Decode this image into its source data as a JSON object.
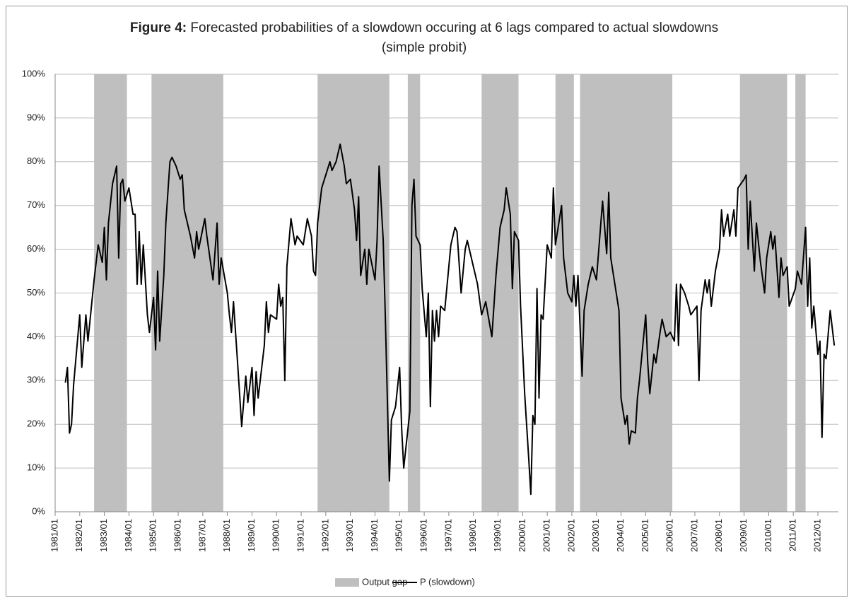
{
  "chart_data": {
    "type": "line",
    "title_label": "Figure 4:",
    "title": "Forecasted probabilities of a slowdown occuring at 6 lags compared to actual slowdowns (simple probit)",
    "xlim": [
      "1981/01",
      "2012/11"
    ],
    "xticks": [
      "1981/01",
      "1982/01",
      "1983/01",
      "1984/01",
      "1985/01",
      "1986/01",
      "1987/01",
      "1988/01",
      "1989/01",
      "1990/01",
      "1991/01",
      "1992/01",
      "1993/01",
      "1994/01",
      "1995/01",
      "1996/01",
      "1997/01",
      "1998/01",
      "1999/01",
      "2000/01",
      "2001/01",
      "2002/01",
      "2003/01",
      "2004/01",
      "2005/01",
      "2006/01",
      "2007/01",
      "2008/01",
      "2009/01",
      "2010/01",
      "2011/01",
      "2012/01"
    ],
    "ylim": [
      0,
      100
    ],
    "yticks": [
      {
        "value": 0,
        "label": "0%"
      },
      {
        "value": 10,
        "label": "10%"
      },
      {
        "value": 20,
        "label": "20%"
      },
      {
        "value": 30,
        "label": "30%"
      },
      {
        "value": 40,
        "label": "40%"
      },
      {
        "value": 50,
        "label": "50%"
      },
      {
        "value": 60,
        "label": "60%"
      },
      {
        "value": 70,
        "label": "70%"
      },
      {
        "value": 80,
        "label": "80%"
      },
      {
        "value": 90,
        "label": "90%"
      },
      {
        "value": 100,
        "label": "100%"
      }
    ],
    "grid": true,
    "legend": "bottom",
    "series": [
      {
        "name": "Output gap",
        "color": "#bfbfbf",
        "periods": [
          [
            "1982/08",
            "1983/12"
          ],
          [
            "1984/12",
            "1987/11"
          ],
          [
            "1991/09",
            "1994/08"
          ],
          [
            "1995/05",
            "1995/11"
          ],
          [
            "1998/05",
            "1999/11"
          ],
          [
            "2001/05",
            "2002/02"
          ],
          [
            "2002/05",
            "2006/02"
          ],
          [
            "2008/11",
            "2010/10"
          ],
          [
            "2011/02",
            "2011/07"
          ]
        ]
      },
      {
        "name": "P (slowdown)",
        "color": "#000000",
        "x": [
          "1981/06",
          "1981/07",
          "1981/08",
          "1981/09",
          "1981/10",
          "1982/01",
          "1982/02",
          "1982/04",
          "1982/05",
          "1982/08",
          "1982/10",
          "1982/12",
          "1983/01",
          "1983/02",
          "1983/03",
          "1983/05",
          "1983/07",
          "1983/08",
          "1983/09",
          "1983/10",
          "1983/11",
          "1984/01",
          "1984/03",
          "1984/04",
          "1984/05",
          "1984/06",
          "1984/07",
          "1984/08",
          "1984/10",
          "1984/11",
          "1985/01",
          "1985/02",
          "1985/03",
          "1985/04",
          "1985/06",
          "1985/07",
          "1985/09",
          "1985/10",
          "1985/12",
          "1986/02",
          "1986/03",
          "1986/04",
          "1986/07",
          "1986/09",
          "1986/10",
          "1986/11",
          "1987/02",
          "1987/03",
          "1987/06",
          "1987/08",
          "1987/09",
          "1987/10",
          "1988/01",
          "1988/02",
          "1988/03",
          "1988/04",
          "1988/06",
          "1988/08",
          "1988/10",
          "1988/11",
          "1989/01",
          "1989/02",
          "1989/03",
          "1989/04",
          "1989/07",
          "1989/08",
          "1989/09",
          "1989/10",
          "1990/01",
          "1990/02",
          "1990/03",
          "1990/04",
          "1990/05",
          "1990/06",
          "1990/08",
          "1990/10",
          "1990/11",
          "1991/02",
          "1991/04",
          "1991/06",
          "1991/07",
          "1991/08",
          "1991/09",
          "1991/11",
          "1992/03",
          "1992/04",
          "1992/06",
          "1992/08",
          "1992/10",
          "1992/11",
          "1993/01",
          "1993/03",
          "1993/04",
          "1993/05",
          "1993/06",
          "1993/08",
          "1993/09",
          "1993/10",
          "1994/01",
          "1994/02",
          "1994/03",
          "1994/05",
          "1994/06",
          "1994/08",
          "1994/09",
          "1994/11",
          "1995/01",
          "1995/02",
          "1995/03",
          "1995/06",
          "1995/07",
          "1995/08",
          "1995/09",
          "1995/11",
          "1995/12",
          "1996/02",
          "1996/03",
          "1996/04",
          "1996/05",
          "1996/06",
          "1996/07",
          "1996/08",
          "1996/09",
          "1996/11",
          "1997/01",
          "1997/02",
          "1997/04",
          "1997/05",
          "1997/07",
          "1997/09",
          "1997/10",
          "1998/01",
          "1998/03",
          "1998/05",
          "1998/07",
          "1998/10",
          "1998/12",
          "1999/02",
          "1999/04",
          "1999/05",
          "1999/07",
          "1999/08",
          "1999/09",
          "1999/11",
          "1999/12",
          "2000/01",
          "2000/02",
          "2000/04",
          "2000/05",
          "2000/06",
          "2000/07",
          "2000/08",
          "2000/09",
          "2000/10",
          "2000/11",
          "2001/01",
          "2001/03",
          "2001/04",
          "2001/05",
          "2001/06",
          "2001/08",
          "2001/09",
          "2001/11",
          "2002/01",
          "2002/02",
          "2002/03",
          "2002/04",
          "2002/06",
          "2002/07",
          "2002/09",
          "2002/11",
          "2003/01",
          "2003/03",
          "2003/04",
          "2003/05",
          "2003/06",
          "2003/07",
          "2003/08",
          "2003/10",
          "2003/12",
          "2004/01",
          "2004/03",
          "2004/04",
          "2004/05",
          "2004/06",
          "2004/08",
          "2004/09",
          "2004/10",
          "2005/01",
          "2005/02",
          "2005/03",
          "2005/05",
          "2005/06",
          "2005/08",
          "2005/09",
          "2005/11",
          "2006/01",
          "2006/03",
          "2006/04",
          "2006/05",
          "2006/06",
          "2006/08",
          "2006/10",
          "2006/11",
          "2007/02",
          "2007/03",
          "2007/04",
          "2007/06",
          "2007/07",
          "2007/08",
          "2007/09",
          "2007/11",
          "2008/01",
          "2008/02",
          "2008/03",
          "2008/05",
          "2008/06",
          "2008/08",
          "2008/09",
          "2008/10",
          "2009/01",
          "2009/02",
          "2009/03",
          "2009/04",
          "2009/06",
          "2009/07",
          "2009/09",
          "2009/11",
          "2009/12",
          "2010/02",
          "2010/03",
          "2010/04",
          "2010/06",
          "2010/07",
          "2010/08",
          "2010/10",
          "2010/11",
          "2011/02",
          "2011/03",
          "2011/05",
          "2011/07",
          "2011/08",
          "2011/09",
          "2011/10",
          "2011/11",
          "2012/01",
          "2012/02",
          "2012/03",
          "2012/04",
          "2012/05",
          "2012/07",
          "2012/09"
        ],
        "values": [
          29.5,
          33,
          18,
          20,
          29,
          45,
          33,
          45,
          39,
          53,
          61,
          57,
          65,
          53,
          66,
          75,
          79,
          58,
          75,
          76,
          71,
          74,
          68,
          68,
          52,
          64,
          52,
          61,
          45,
          41,
          49,
          37,
          55,
          39,
          54,
          66,
          80,
          81,
          79,
          76,
          77,
          69,
          63,
          58,
          64,
          60,
          67,
          63,
          53,
          66,
          52,
          58,
          50,
          45,
          41,
          48,
          34,
          19.5,
          31,
          25,
          33,
          22,
          32,
          26,
          38,
          48,
          41,
          45,
          44,
          52,
          47,
          49,
          30,
          56,
          67,
          61,
          63,
          61,
          67,
          63,
          55,
          54,
          66,
          74,
          80,
          78,
          80,
          84,
          79,
          75,
          76,
          69,
          62,
          72,
          54,
          60,
          52,
          60,
          53,
          62,
          79,
          62,
          45,
          7,
          21,
          24,
          33,
          19,
          10,
          23,
          70,
          76,
          63,
          61,
          51,
          40,
          50,
          24,
          46,
          39,
          46,
          40,
          47,
          46,
          56,
          61,
          65,
          64,
          50,
          60,
          62,
          56,
          52,
          45,
          48,
          40,
          54,
          65,
          69,
          74,
          68,
          51,
          64,
          62,
          47,
          37,
          27,
          12,
          4,
          22,
          20,
          51,
          26,
          45,
          44,
          61,
          58,
          74,
          61,
          64,
          70,
          58,
          50,
          48,
          54,
          47,
          54,
          31,
          46,
          52,
          56,
          53,
          65,
          71,
          65,
          59,
          73,
          58,
          52,
          46,
          26,
          20,
          22,
          15.5,
          18.5,
          18,
          26,
          30,
          45,
          34,
          27,
          36,
          34,
          41,
          44,
          40,
          41,
          39,
          52,
          38,
          52,
          50,
          47,
          45,
          47,
          30,
          46,
          53,
          50,
          53,
          47,
          55,
          60,
          69,
          63,
          68,
          63,
          69,
          63,
          74,
          76,
          77,
          60,
          71,
          55,
          66,
          57,
          50,
          58,
          64,
          60,
          63,
          49,
          58,
          54,
          56,
          47,
          51,
          55,
          52,
          65,
          47,
          58,
          42,
          47,
          36,
          39,
          17,
          36,
          35,
          46,
          38
        ]
      }
    ]
  }
}
